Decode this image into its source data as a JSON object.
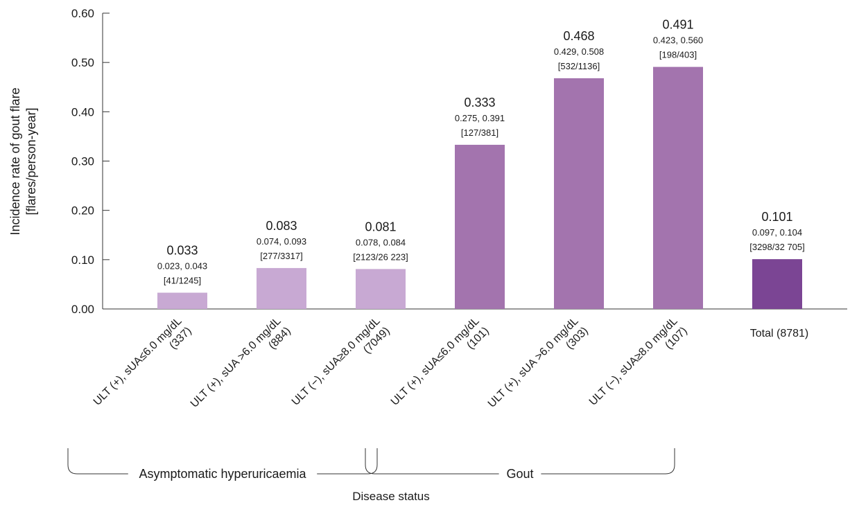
{
  "chart_data": {
    "type": "bar",
    "ylabel_line1": "Incidence rate of gout flare",
    "ylabel_line2": "[flares/person-year]",
    "xlabel": "Disease status",
    "ylim": [
      0,
      0.6
    ],
    "yticks": [
      "0.00",
      "0.10",
      "0.20",
      "0.30",
      "0.40",
      "0.50",
      "0.60"
    ],
    "grid": false,
    "bars": [
      {
        "category_line1": "ULT (+), sUA≤6.0 mg/dL",
        "category_line2": "(337)",
        "value": 0.033,
        "value_label": "0.033",
        "ci_label": "0.023, 0.043",
        "events_label": "[41/1245]",
        "group": "Asymptomatic hyperuricaemia",
        "color": "#c8a9d3"
      },
      {
        "category_line1": "ULT (+), sUA >6.0 mg/dL",
        "category_line2": "(884)",
        "value": 0.083,
        "value_label": "0.083",
        "ci_label": "0.074, 0.093",
        "events_label": "[277/3317]",
        "group": "Asymptomatic hyperuricaemia",
        "color": "#c8a9d3"
      },
      {
        "category_line1": "ULT (−), sUA≥8.0 mg/dL",
        "category_line2": "(7049)",
        "value": 0.081,
        "value_label": "0.081",
        "ci_label": "0.078, 0.084",
        "events_label": "[2123/26 223]",
        "group": "Asymptomatic hyperuricaemia",
        "color": "#c8a9d3"
      },
      {
        "category_line1": "ULT (+), sUA≤6.0 mg/dL",
        "category_line2": "(101)",
        "value": 0.333,
        "value_label": "0.333",
        "ci_label": "0.275, 0.391",
        "events_label": "[127/381]",
        "group": "Gout",
        "color": "#a374ae"
      },
      {
        "category_line1": "ULT (+), sUA >6.0 mg/dL",
        "category_line2": "(303)",
        "value": 0.468,
        "value_label": "0.468",
        "ci_label": "0.429, 0.508",
        "events_label": "[532/1136]",
        "group": "Gout",
        "color": "#a374ae"
      },
      {
        "category_line1": "ULT (−), sUA≥8.0 mg/dL",
        "category_line2": "(107)",
        "value": 0.491,
        "value_label": "0.491",
        "ci_label": "0.423, 0.560",
        "events_label": "[198/403]",
        "group": "Gout",
        "color": "#a374ae"
      },
      {
        "category_line1": "Total (8781)",
        "category_line2": "",
        "value": 0.101,
        "value_label": "0.101",
        "ci_label": "0.097, 0.104",
        "events_label": "[3298/32 705]",
        "group": "",
        "color": "#7b4594"
      }
    ],
    "groups": [
      {
        "label": "Asymptomatic hyperuricaemia",
        "from": 0,
        "to": 2
      },
      {
        "label": "Gout",
        "from": 3,
        "to": 5
      }
    ]
  }
}
